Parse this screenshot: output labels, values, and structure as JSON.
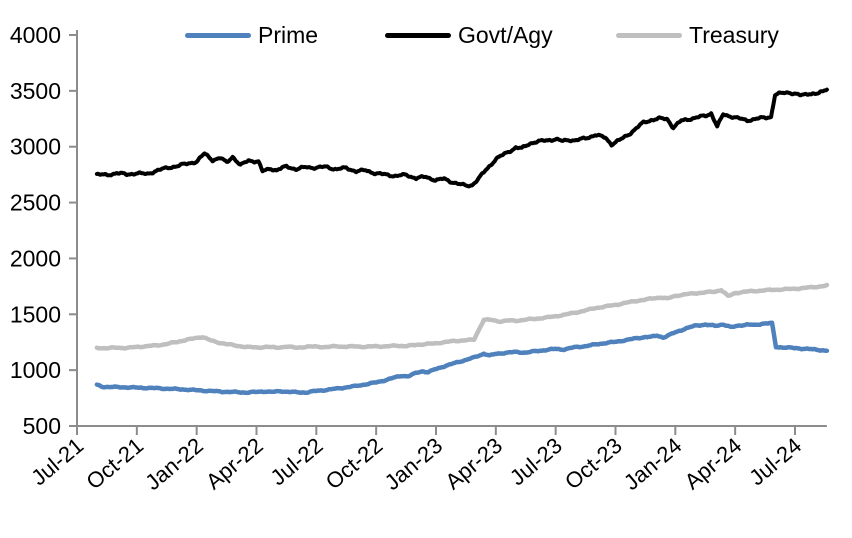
{
  "style": {
    "background": "#ffffff",
    "axis_color": "#8C8C8C",
    "label_color": "#000000"
  },
  "chart_data": {
    "type": "line",
    "title": "",
    "legend": {
      "position": "top",
      "entries": [
        "Prime",
        "Govt/Agy",
        "Treasury"
      ]
    },
    "x_axis": {
      "unit": "months since Jul-2021",
      "tick_labels": [
        "Jul-21",
        "Oct-21",
        "Jan-22",
        "Apr-22",
        "Jul-22",
        "Oct-22",
        "Jan-23",
        "Apr-23",
        "Jul-23",
        "Oct-23",
        "Jan-24",
        "Apr-24",
        "Jul-24"
      ],
      "tick_months": [
        0,
        3,
        6,
        9,
        12,
        15,
        18,
        21,
        24,
        27,
        30,
        33,
        36
      ],
      "domain_months": [
        0,
        37.6
      ]
    },
    "y_axis": {
      "min": 500,
      "max": 4000,
      "tick_interval": 500,
      "tick_labels": [
        "500",
        "1000",
        "1500",
        "2000",
        "2500",
        "3000",
        "3500",
        "4000"
      ]
    },
    "series": [
      {
        "name": "Prime",
        "color": "#4F81BD",
        "points": [
          [
            1,
            868
          ],
          [
            1.3,
            851
          ],
          [
            2,
            848
          ],
          [
            2.5,
            846
          ],
          [
            3,
            843
          ],
          [
            3.5,
            841
          ],
          [
            4,
            838
          ],
          [
            4.5,
            834
          ],
          [
            5,
            830
          ],
          [
            5.5,
            826
          ],
          [
            6,
            820
          ],
          [
            6.5,
            815
          ],
          [
            7,
            810
          ],
          [
            7.5,
            806
          ],
          [
            8,
            803
          ],
          [
            8.5,
            800
          ],
          [
            9,
            804
          ],
          [
            9.4,
            810
          ],
          [
            9.8,
            804
          ],
          [
            10.2,
            812
          ],
          [
            10.6,
            806
          ],
          [
            11,
            802
          ],
          [
            11.5,
            800
          ],
          [
            12,
            814
          ],
          [
            12.5,
            823
          ],
          [
            13,
            834
          ],
          [
            13.5,
            846
          ],
          [
            14,
            858
          ],
          [
            14.5,
            874
          ],
          [
            15,
            890
          ],
          [
            15.5,
            912
          ],
          [
            16,
            938
          ],
          [
            16.3,
            950
          ],
          [
            16.6,
            944
          ],
          [
            17,
            975
          ],
          [
            17.3,
            990
          ],
          [
            17.6,
            982
          ],
          [
            18,
            1010
          ],
          [
            18.5,
            1040
          ],
          [
            19,
            1066
          ],
          [
            19.5,
            1092
          ],
          [
            20,
            1118
          ],
          [
            20.4,
            1148
          ],
          [
            20.7,
            1131
          ],
          [
            21,
            1145
          ],
          [
            21.5,
            1156
          ],
          [
            22,
            1162
          ],
          [
            22.5,
            1157
          ],
          [
            23,
            1170
          ],
          [
            23.5,
            1180
          ],
          [
            24,
            1190
          ],
          [
            24.4,
            1185
          ],
          [
            25,
            1206
          ],
          [
            25.5,
            1215
          ],
          [
            26,
            1230
          ],
          [
            26.5,
            1243
          ],
          [
            27,
            1253
          ],
          [
            27.5,
            1268
          ],
          [
            28,
            1284
          ],
          [
            28.5,
            1297
          ],
          [
            28.8,
            1298
          ],
          [
            29.1,
            1309
          ],
          [
            29.4,
            1292
          ],
          [
            30,
            1338
          ],
          [
            30.5,
            1372
          ],
          [
            31,
            1398
          ],
          [
            31.5,
            1408
          ],
          [
            32,
            1396
          ],
          [
            32.4,
            1410
          ],
          [
            32.8,
            1383
          ],
          [
            33.2,
            1400
          ],
          [
            33.6,
            1408
          ],
          [
            34,
            1403
          ],
          [
            34.4,
            1418
          ],
          [
            34.85,
            1420
          ],
          [
            35.05,
            1207
          ],
          [
            35.5,
            1203
          ],
          [
            36,
            1197
          ],
          [
            36.6,
            1190
          ],
          [
            37.1,
            1183
          ],
          [
            37.6,
            1174
          ]
        ]
      },
      {
        "name": "Govt/Agy",
        "color": "#000000",
        "points": [
          [
            1,
            2756
          ],
          [
            1.5,
            2742
          ],
          [
            2,
            2768
          ],
          [
            2.5,
            2748
          ],
          [
            3,
            2766
          ],
          [
            3.5,
            2752
          ],
          [
            4,
            2788
          ],
          [
            4.5,
            2808
          ],
          [
            5,
            2828
          ],
          [
            5.5,
            2846
          ],
          [
            6,
            2868
          ],
          [
            6.4,
            2938
          ],
          [
            6.8,
            2882
          ],
          [
            7.2,
            2898
          ],
          [
            7.5,
            2858
          ],
          [
            7.8,
            2912
          ],
          [
            8.2,
            2832
          ],
          [
            8.6,
            2878
          ],
          [
            9.1,
            2866
          ],
          [
            9.3,
            2778
          ],
          [
            9.7,
            2806
          ],
          [
            10,
            2788
          ],
          [
            10.5,
            2824
          ],
          [
            11,
            2798
          ],
          [
            11.5,
            2818
          ],
          [
            12,
            2812
          ],
          [
            12.5,
            2820
          ],
          [
            13,
            2798
          ],
          [
            13.5,
            2810
          ],
          [
            14,
            2780
          ],
          [
            14.5,
            2788
          ],
          [
            15,
            2760
          ],
          [
            15.5,
            2750
          ],
          [
            16,
            2738
          ],
          [
            16.5,
            2748
          ],
          [
            17,
            2718
          ],
          [
            17.5,
            2730
          ],
          [
            18,
            2700
          ],
          [
            18.4,
            2712
          ],
          [
            18.8,
            2685
          ],
          [
            19.2,
            2662
          ],
          [
            19.5,
            2652
          ],
          [
            19.8,
            2656
          ],
          [
            20.1,
            2706
          ],
          [
            20.5,
            2792
          ],
          [
            21,
            2888
          ],
          [
            21.5,
            2942
          ],
          [
            22,
            2992
          ],
          [
            22.3,
            2984
          ],
          [
            22.7,
            3030
          ],
          [
            23,
            3042
          ],
          [
            23.5,
            3056
          ],
          [
            24,
            3068
          ],
          [
            24.3,
            3050
          ],
          [
            24.7,
            3062
          ],
          [
            25,
            3056
          ],
          [
            25.5,
            3076
          ],
          [
            26,
            3106
          ],
          [
            26.5,
            3080
          ],
          [
            26.8,
            3022
          ],
          [
            27.3,
            3068
          ],
          [
            27.7,
            3116
          ],
          [
            28,
            3158
          ],
          [
            28.4,
            3216
          ],
          [
            28.8,
            3240
          ],
          [
            29.2,
            3252
          ],
          [
            29.6,
            3248
          ],
          [
            29.9,
            3172
          ],
          [
            30.3,
            3232
          ],
          [
            30.7,
            3248
          ],
          [
            31.1,
            3262
          ],
          [
            31.5,
            3276
          ],
          [
            31.8,
            3300
          ],
          [
            32.1,
            3180
          ],
          [
            32.4,
            3288
          ],
          [
            32.8,
            3272
          ],
          [
            33.2,
            3252
          ],
          [
            33.6,
            3236
          ],
          [
            34,
            3248
          ],
          [
            34.4,
            3258
          ],
          [
            34.8,
            3268
          ],
          [
            35,
            3462
          ],
          [
            35.3,
            3478
          ],
          [
            35.7,
            3488
          ],
          [
            36,
            3472
          ],
          [
            36.3,
            3458
          ],
          [
            36.7,
            3478
          ],
          [
            37.1,
            3472
          ],
          [
            37.4,
            3492
          ],
          [
            37.6,
            3520
          ]
        ]
      },
      {
        "name": "Treasury",
        "color": "#BFBFBF",
        "points": [
          [
            1,
            1200
          ],
          [
            1.5,
            1196
          ],
          [
            2,
            1202
          ],
          [
            2.5,
            1198
          ],
          [
            3,
            1208
          ],
          [
            3.5,
            1214
          ],
          [
            4,
            1222
          ],
          [
            4.5,
            1234
          ],
          [
            5,
            1252
          ],
          [
            5.5,
            1272
          ],
          [
            6,
            1288
          ],
          [
            6.3,
            1298
          ],
          [
            6.7,
            1266
          ],
          [
            7,
            1250
          ],
          [
            7.5,
            1234
          ],
          [
            8,
            1218
          ],
          [
            8.5,
            1208
          ],
          [
            9,
            1202
          ],
          [
            9.5,
            1208
          ],
          [
            10,
            1202
          ],
          [
            10.5,
            1210
          ],
          [
            11,
            1202
          ],
          [
            11.5,
            1208
          ],
          [
            12,
            1212
          ],
          [
            12.5,
            1205
          ],
          [
            13,
            1215
          ],
          [
            13.5,
            1208
          ],
          [
            14,
            1214
          ],
          [
            14.5,
            1207
          ],
          [
            15,
            1215
          ],
          [
            15.5,
            1211
          ],
          [
            16,
            1220
          ],
          [
            16.5,
            1215
          ],
          [
            17,
            1227
          ],
          [
            17.5,
            1233
          ],
          [
            18,
            1240
          ],
          [
            18.5,
            1252
          ],
          [
            19,
            1262
          ],
          [
            19.5,
            1268
          ],
          [
            19.9,
            1272
          ],
          [
            20.4,
            1452
          ],
          [
            20.8,
            1448
          ],
          [
            21.2,
            1436
          ],
          [
            21.6,
            1444
          ],
          [
            22,
            1442
          ],
          [
            22.5,
            1452
          ],
          [
            23,
            1460
          ],
          [
            23.5,
            1470
          ],
          [
            24,
            1482
          ],
          [
            24.5,
            1498
          ],
          [
            25,
            1515
          ],
          [
            25.5,
            1535
          ],
          [
            26,
            1556
          ],
          [
            26.5,
            1570
          ],
          [
            27,
            1584
          ],
          [
            27.5,
            1602
          ],
          [
            28,
            1618
          ],
          [
            28.5,
            1632
          ],
          [
            29,
            1645
          ],
          [
            29.3,
            1652
          ],
          [
            29.6,
            1640
          ],
          [
            30,
            1665
          ],
          [
            30.5,
            1678
          ],
          [
            31,
            1688
          ],
          [
            31.5,
            1696
          ],
          [
            32,
            1703
          ],
          [
            32.3,
            1718
          ],
          [
            32.65,
            1662
          ],
          [
            33,
            1690
          ],
          [
            33.5,
            1702
          ],
          [
            34,
            1708
          ],
          [
            34.5,
            1715
          ],
          [
            35,
            1720
          ],
          [
            35.5,
            1724
          ],
          [
            36,
            1728
          ],
          [
            36.5,
            1736
          ],
          [
            37,
            1744
          ],
          [
            37.6,
            1757
          ]
        ]
      }
    ]
  }
}
